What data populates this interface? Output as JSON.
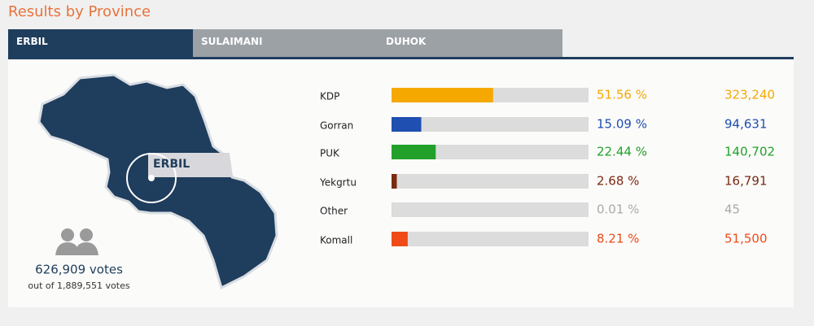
{
  "header": {
    "title": "Results by Province"
  },
  "tabs": [
    "ERBIL",
    "SULAIMANI",
    "DUHOK"
  ],
  "map": {
    "label": "ERBIL"
  },
  "summary": {
    "votes": "626,909 votes",
    "total": "out of 1,889,551 votes"
  },
  "chart_data": {
    "type": "bar",
    "categories": [
      "KDP",
      "Gorran",
      "PUK",
      "Yekgrtu",
      "Other",
      "Komall"
    ],
    "values": [
      51.56,
      15.09,
      22.44,
      2.68,
      0.01,
      8.21
    ],
    "value_labels": [
      "51.56 %",
      "15.09 %",
      "22.44 %",
      "2.68 %",
      "0.01 %",
      "8.21 %"
    ],
    "votes": [
      "323,240",
      "94,631",
      "140,702",
      "16,791",
      "45",
      "51,500"
    ],
    "colors": [
      "#f5a800",
      "#1f4fb0",
      "#22a02a",
      "#7a2a10",
      "#aaaaaa",
      "#f04a16"
    ],
    "xlim": [
      0,
      100
    ]
  }
}
